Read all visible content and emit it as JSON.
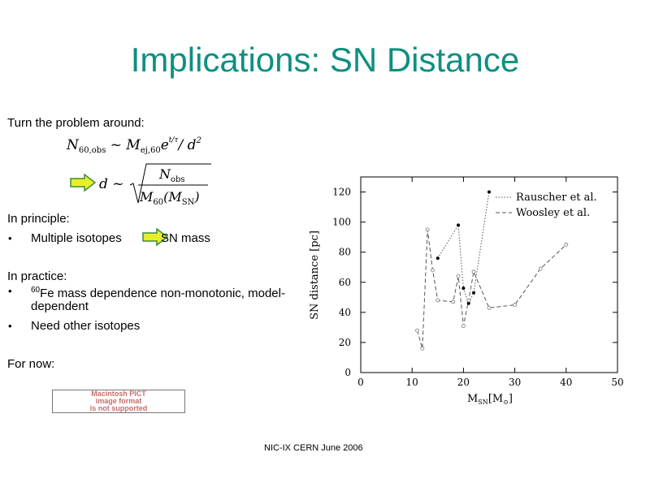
{
  "title": "Implications:  SN Distance",
  "intro": "Turn the problem around:",
  "equations": {
    "eq1_lhs_sym": "N",
    "eq1_lhs_sub": "60,obs",
    "eq1_mid": " ~ M",
    "eq1_mid_sub": "ej,60",
    "eq1_exp_base": "e",
    "eq1_exp": "t/τ",
    "eq1_rhs": "/ d",
    "eq1_rhs_sup": "2",
    "eq2_lhs": "d ~",
    "eq2_num": "N",
    "eq2_num_sub": "obs",
    "eq2_den": "M",
    "eq2_den_sub": "60",
    "eq2_den_arg": "(M",
    "eq2_den_arg_sub": "SN",
    "eq2_den_close": ")"
  },
  "principle": {
    "heading": "In principle:",
    "bullet_text": "Multiple isotopes",
    "result_text": "SN mass"
  },
  "practice": {
    "heading": "In practice:",
    "item1_sup": "60",
    "item1_line1": "Fe mass dependence non-monotonic, model-",
    "item1_line2": "dependent",
    "item2": "Need other isotopes"
  },
  "for_now": "For now:",
  "pict_placeholder": [
    "Macintosh PICT",
    "image format",
    "is not supported"
  ],
  "footer": "NIC-IX CERN June 2006",
  "colors": {
    "title": "#0f8f80",
    "arrow_fill": "#e6f02a",
    "arrow_stroke": "#3c8c3c"
  },
  "chart_data": {
    "type": "line",
    "xlabel": "M",
    "xlabel_sub": "SN",
    "xlabel_unit": "[M",
    "xlabel_unit_sub": "⊙",
    "xlabel_unit_close": "]",
    "ylabel": "SN distance [pc]",
    "xlim": [
      0,
      50
    ],
    "ylim": [
      0,
      130
    ],
    "xticks": [
      0,
      10,
      20,
      30,
      40,
      50
    ],
    "yticks": [
      0,
      20,
      40,
      60,
      80,
      100,
      120
    ],
    "xtick_labels": [
      "0",
      "10",
      "20",
      "30",
      "40",
      "50"
    ],
    "ytick_labels": [
      "0",
      "20",
      "40",
      "60",
      "80",
      "100",
      "120"
    ],
    "legend_position": "top-right",
    "series": [
      {
        "name": "Rauscher et al.",
        "style": "dotted",
        "marker": "dot",
        "points": [
          [
            15,
            76
          ],
          [
            19,
            98
          ],
          [
            20,
            56
          ],
          [
            21,
            46
          ],
          [
            22,
            53
          ],
          [
            25,
            120
          ]
        ]
      },
      {
        "name": "Woosley et al.",
        "style": "dashed",
        "marker": "star",
        "points": [
          [
            11,
            28
          ],
          [
            12,
            16
          ],
          [
            13,
            95
          ],
          [
            14,
            68
          ],
          [
            15,
            48
          ],
          [
            18,
            47
          ],
          [
            19,
            64
          ],
          [
            20,
            31
          ],
          [
            21,
            48
          ],
          [
            22,
            67
          ],
          [
            25,
            43
          ],
          [
            30,
            45
          ],
          [
            35,
            69
          ],
          [
            40,
            85
          ]
        ]
      }
    ]
  }
}
